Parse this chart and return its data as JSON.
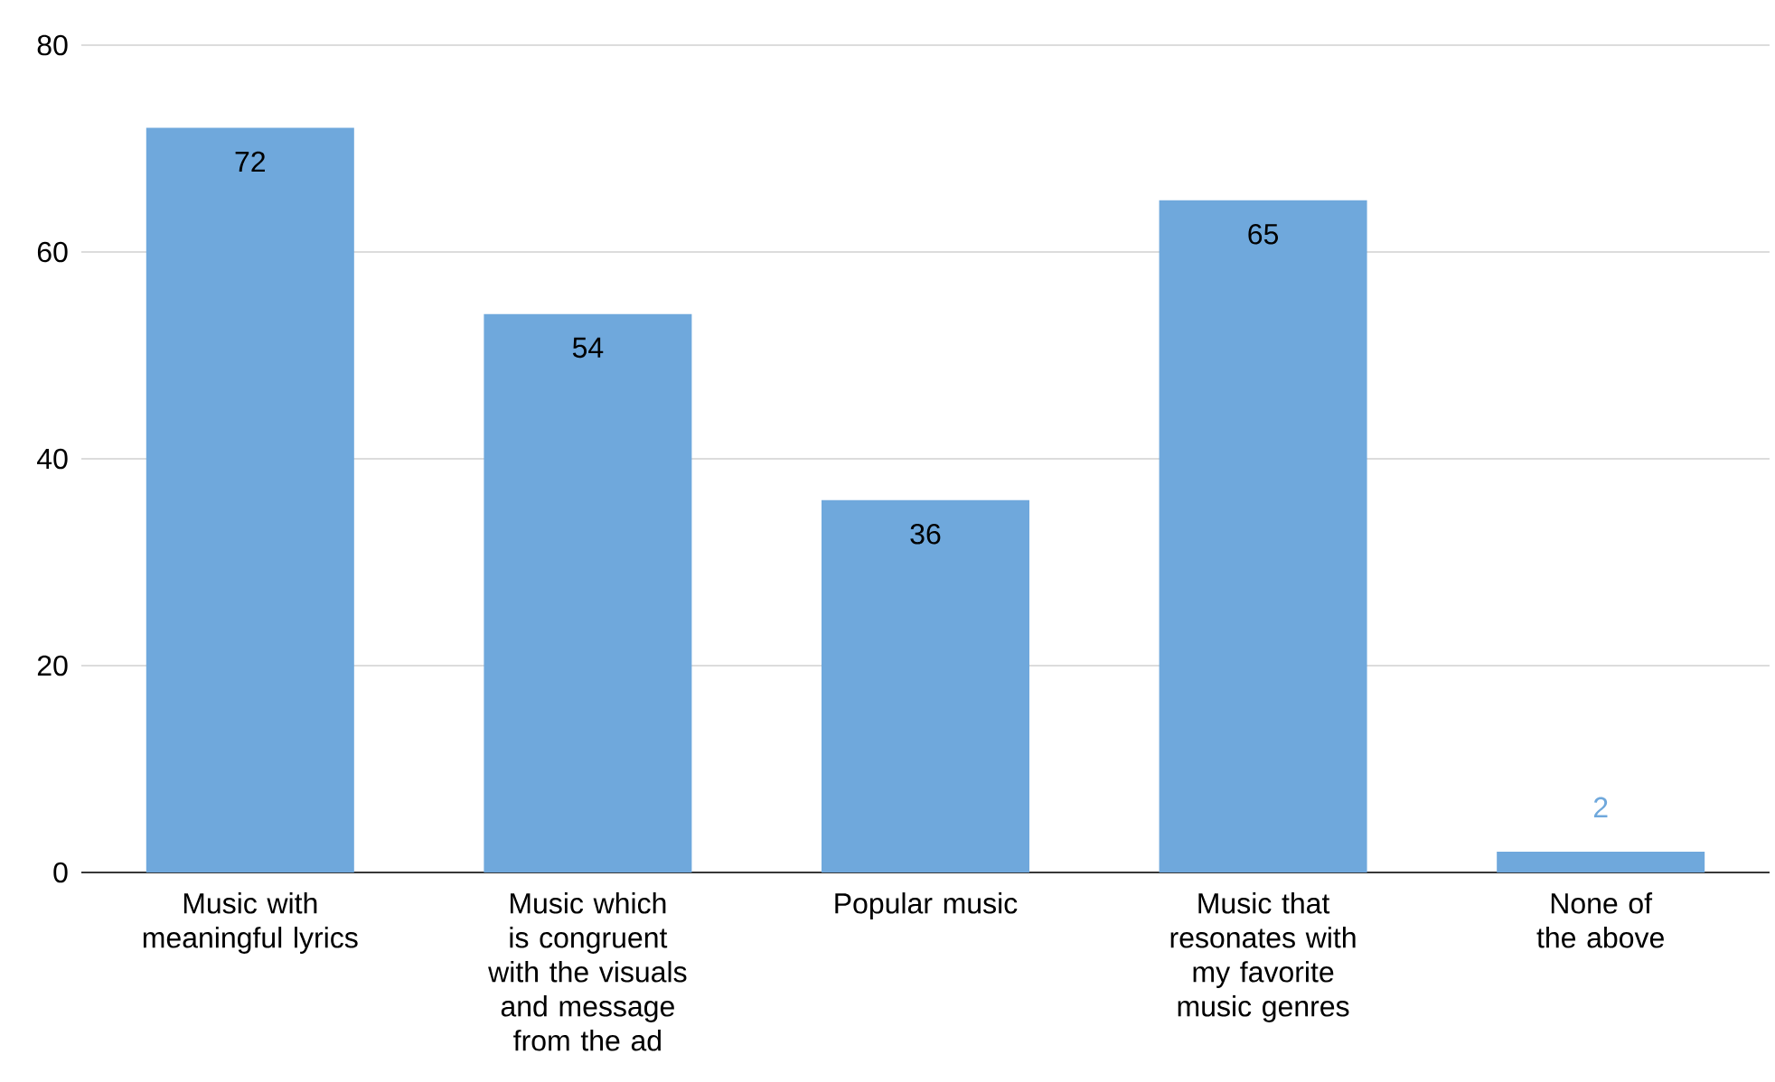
{
  "chart_data": {
    "type": "bar",
    "categories": [
      "Music with meaningful lyrics",
      "Music which is congruent with the visuals and message from the ad",
      "Popular music",
      "Music that resonates with my favorite music genres",
      "None of the above"
    ],
    "values": [
      72,
      54,
      36,
      65,
      2
    ],
    "color": "#6fa8dc",
    "ylim": [
      0,
      80
    ],
    "yticks": [
      0,
      20,
      40,
      60,
      80
    ],
    "grid": "y",
    "data_labels": true
  }
}
